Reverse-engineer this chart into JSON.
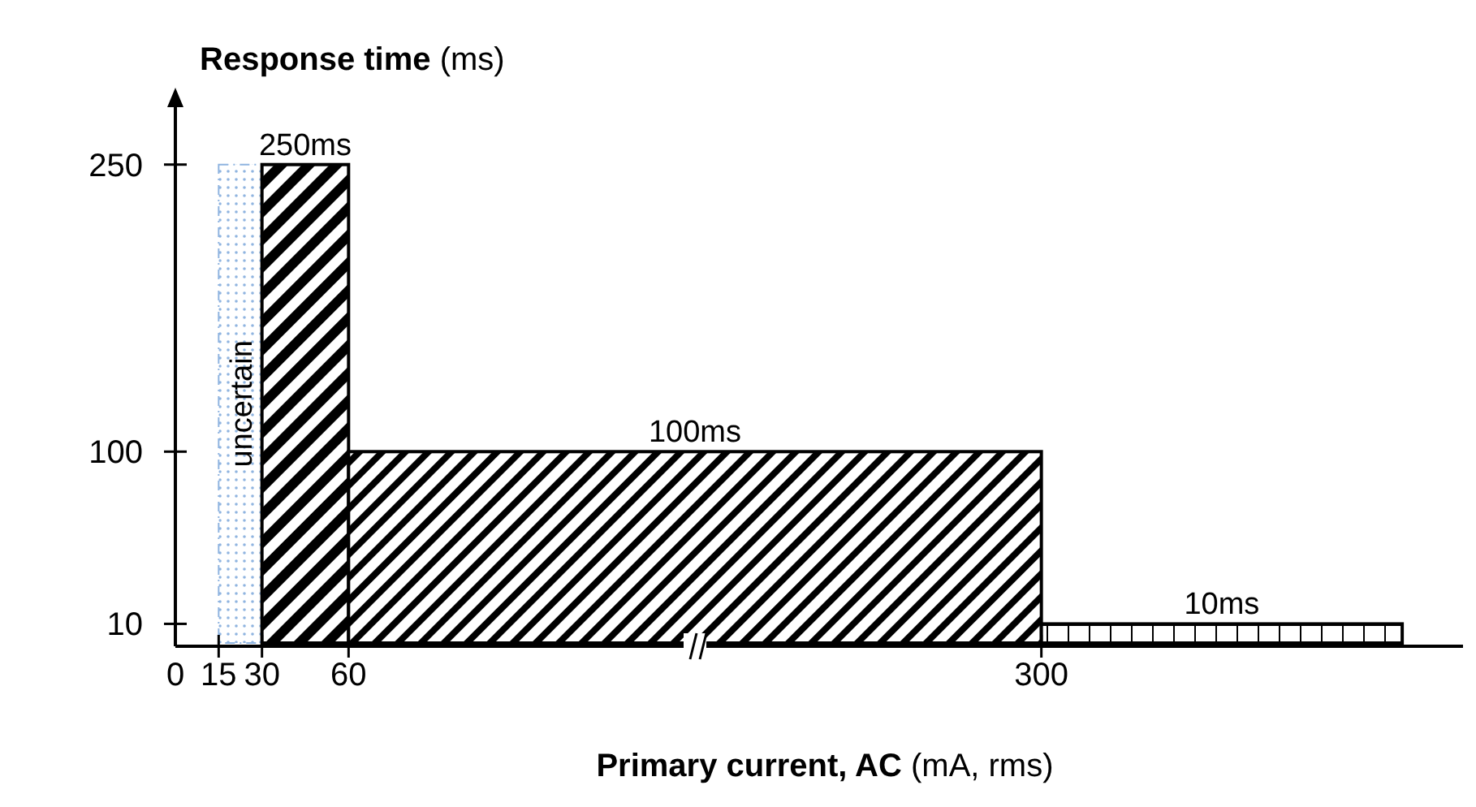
{
  "chart_data": {
    "type": "histogram",
    "xlabel": "Primary current, AC (mA, rms)",
    "ylabel": "Response time (ms)",
    "bins": [
      15,
      30,
      60,
      300,
      425
    ],
    "values": [
      250,
      250,
      100,
      10
    ],
    "value_labels": [
      null,
      "250ms",
      "100ms",
      "10ms"
    ],
    "colors": [
      "#8fb4e0",
      "#000000",
      "#000000",
      "#000000"
    ],
    "xlim": [
      0,
      450
    ],
    "xticks": [
      0,
      15,
      30,
      60,
      300
    ],
    "ylim": [
      0,
      280
    ],
    "yticks": [
      10,
      100,
      250
    ],
    "annotations": [
      "uncertain"
    ]
  }
}
